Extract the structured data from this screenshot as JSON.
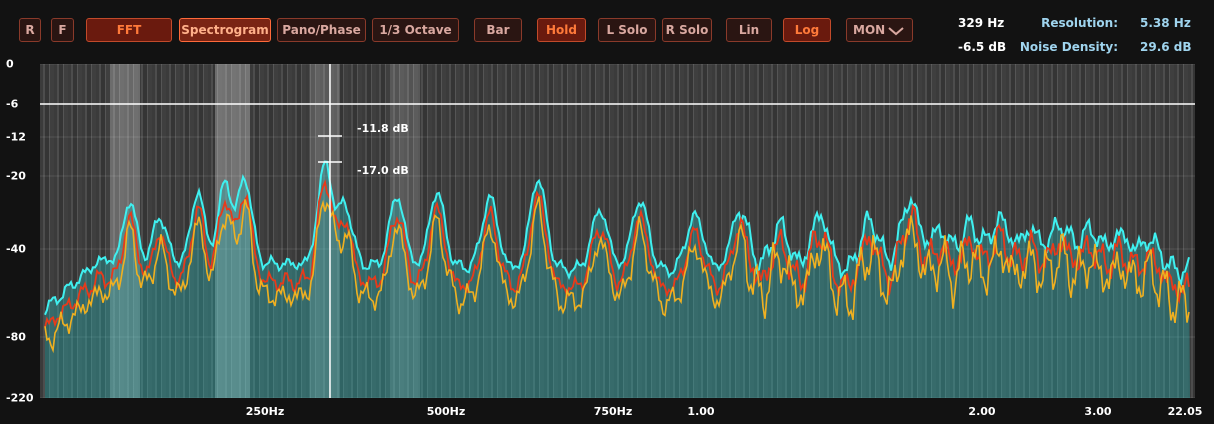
{
  "toolbar": {
    "buttons": [
      "R",
      "F",
      "FFT",
      "Spectrogram",
      "Pano/Phase",
      "1/3 Octave",
      "Bar",
      "Hold",
      "L Solo",
      "R Solo",
      "Lin",
      "Log"
    ],
    "dropdown": "MON"
  },
  "readout": {
    "frequency": "329 Hz",
    "level": "-6.5 dB",
    "resolution_label": "Resolution:",
    "resolution": "5.38 Hz",
    "noise_label": "Noise Density:",
    "noise": "29.6 dB"
  },
  "display": {
    "y_labels": [
      "0",
      "-6",
      "-12",
      "-20",
      "-40",
      "-80",
      "-220"
    ],
    "x_labels": [
      "250Hz",
      "500Hz",
      "750Hz",
      "1.00",
      "2.00",
      "3.00",
      "22.05"
    ],
    "markers": [
      "-11.8 dB",
      "-17.0 dB"
    ]
  }
}
